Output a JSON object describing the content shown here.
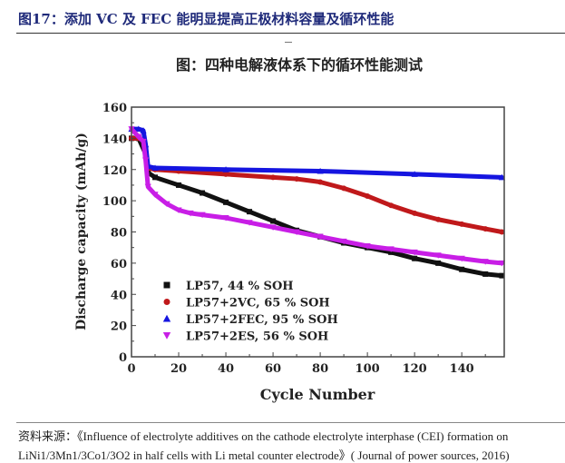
{
  "figure_title": "图17：添加 VC 及 FEC 能明显提高正极材料容量及循环性能",
  "source_line1": "资料来源：《Influence of electrolyte additives on the cathode electrolyte interphase (CEI) formation on",
  "source_line2": "LiNi1/3Mn1/3Co1/3O2 in half cells with Li metal counter electrode》( Journal of power sources, 2016)",
  "chart_data": {
    "type": "scatter",
    "title": "图：四种电解液体系下的循环性能测试",
    "xlabel": "Cycle Number",
    "ylabel": "Discharge capacity (mAh/g)",
    "xlim": [
      0,
      158
    ],
    "ylim": [
      0,
      160
    ],
    "xticks": [
      0,
      20,
      40,
      60,
      80,
      100,
      120,
      140
    ],
    "yticks": [
      0,
      20,
      40,
      60,
      80,
      100,
      120,
      140,
      160
    ],
    "grid": false,
    "legend_position": "bottom-left",
    "series": [
      {
        "name": "LP57, 44 % SOH",
        "color": "#111111",
        "marker": "square",
        "x": [
          0,
          3,
          6,
          7,
          10,
          20,
          30,
          40,
          50,
          60,
          70,
          80,
          90,
          100,
          110,
          120,
          130,
          140,
          150,
          157
        ],
        "y": [
          140,
          140,
          130,
          118,
          115,
          110,
          105,
          99,
          93,
          87,
          81,
          77,
          73,
          70,
          67,
          63,
          60,
          56,
          53,
          52
        ]
      },
      {
        "name": "LP57+2VC, 65 % SOH",
        "color": "#c0191b",
        "marker": "circle",
        "x": [
          0,
          3,
          5,
          6,
          7,
          10,
          20,
          40,
          60,
          70,
          80,
          90,
          100,
          110,
          120,
          130,
          140,
          150,
          157
        ],
        "y": [
          140,
          140,
          139,
          131,
          121,
          120,
          119,
          117,
          115,
          114,
          112,
          108,
          103,
          97,
          92,
          88,
          85,
          82,
          80
        ]
      },
      {
        "name": "LP57+2FEC, 95 % SOH",
        "color": "#1515e0",
        "marker": "triangle-up",
        "x": [
          0,
          3,
          5,
          6,
          7,
          10,
          40,
          80,
          120,
          157
        ],
        "y": [
          146,
          146,
          145,
          136,
          122,
          121,
          120,
          119,
          117,
          115
        ]
      },
      {
        "name": "LP57+2ES, 56 % SOH",
        "color": "#c81ee6",
        "marker": "triangle-down",
        "x": [
          0,
          3,
          5,
          6,
          7,
          10,
          15,
          20,
          25,
          30,
          40,
          50,
          60,
          70,
          80,
          90,
          100,
          110,
          120,
          130,
          140,
          150,
          157
        ],
        "y": [
          146,
          141,
          138,
          126,
          109,
          104,
          98,
          94,
          92,
          91,
          89,
          86,
          83,
          80,
          77,
          74,
          71,
          69,
          67,
          65,
          63,
          61,
          60
        ]
      }
    ]
  }
}
